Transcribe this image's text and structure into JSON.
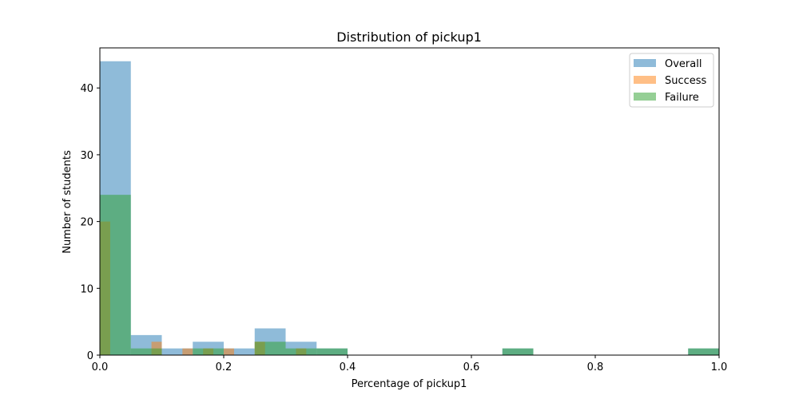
{
  "chart_data": {
    "type": "bar",
    "title": "Distribution of pickup1",
    "xlabel": "Percentage of pickup1",
    "ylabel": "Number of students",
    "xlim": [
      0,
      1.0
    ],
    "ylim": [
      0,
      46
    ],
    "xticks": [
      0.0,
      0.2,
      0.4,
      0.6,
      0.8,
      1.0
    ],
    "xtick_labels": [
      "0.0",
      "0.2",
      "0.4",
      "0.6",
      "0.8",
      "1.0"
    ],
    "yticks": [
      0,
      10,
      20,
      30,
      40
    ],
    "ytick_labels": [
      "0",
      "10",
      "20",
      "30",
      "40"
    ],
    "grid": false,
    "legend_position": "top-right",
    "opacity": 0.5,
    "series": [
      {
        "name": "Overall",
        "color": "#1f77b4",
        "bins": [
          {
            "x0": 0.0,
            "x1": 0.05,
            "count": 44
          },
          {
            "x0": 0.05,
            "x1": 0.1,
            "count": 3
          },
          {
            "x0": 0.1,
            "x1": 0.15,
            "count": 1
          },
          {
            "x0": 0.15,
            "x1": 0.2,
            "count": 2
          },
          {
            "x0": 0.2,
            "x1": 0.25,
            "count": 1
          },
          {
            "x0": 0.25,
            "x1": 0.3,
            "count": 4
          },
          {
            "x0": 0.3,
            "x1": 0.35,
            "count": 2
          },
          {
            "x0": 0.35,
            "x1": 0.4,
            "count": 1
          },
          {
            "x0": 0.65,
            "x1": 0.7,
            "count": 1
          },
          {
            "x0": 0.95,
            "x1": 1.0,
            "count": 1
          }
        ]
      },
      {
        "name": "Success",
        "color": "#ff7f0e",
        "bins": [
          {
            "x0": 0.0,
            "x1": 0.0167,
            "count": 20
          },
          {
            "x0": 0.0833,
            "x1": 0.1,
            "count": 2
          },
          {
            "x0": 0.1333,
            "x1": 0.15,
            "count": 1
          },
          {
            "x0": 0.1667,
            "x1": 0.1833,
            "count": 1
          },
          {
            "x0": 0.2,
            "x1": 0.2167,
            "count": 1
          },
          {
            "x0": 0.25,
            "x1": 0.2667,
            "count": 2
          },
          {
            "x0": 0.3167,
            "x1": 0.3333,
            "count": 1
          }
        ]
      },
      {
        "name": "Failure",
        "color": "#2ca02c",
        "bins": [
          {
            "x0": 0.0,
            "x1": 0.05,
            "count": 24
          },
          {
            "x0": 0.05,
            "x1": 0.1,
            "count": 1
          },
          {
            "x0": 0.15,
            "x1": 0.2,
            "count": 1
          },
          {
            "x0": 0.25,
            "x1": 0.3,
            "count": 2
          },
          {
            "x0": 0.3,
            "x1": 0.35,
            "count": 1
          },
          {
            "x0": 0.35,
            "x1": 0.4,
            "count": 1
          },
          {
            "x0": 0.65,
            "x1": 0.7,
            "count": 1
          },
          {
            "x0": 0.95,
            "x1": 1.0,
            "count": 1
          }
        ]
      }
    ]
  }
}
